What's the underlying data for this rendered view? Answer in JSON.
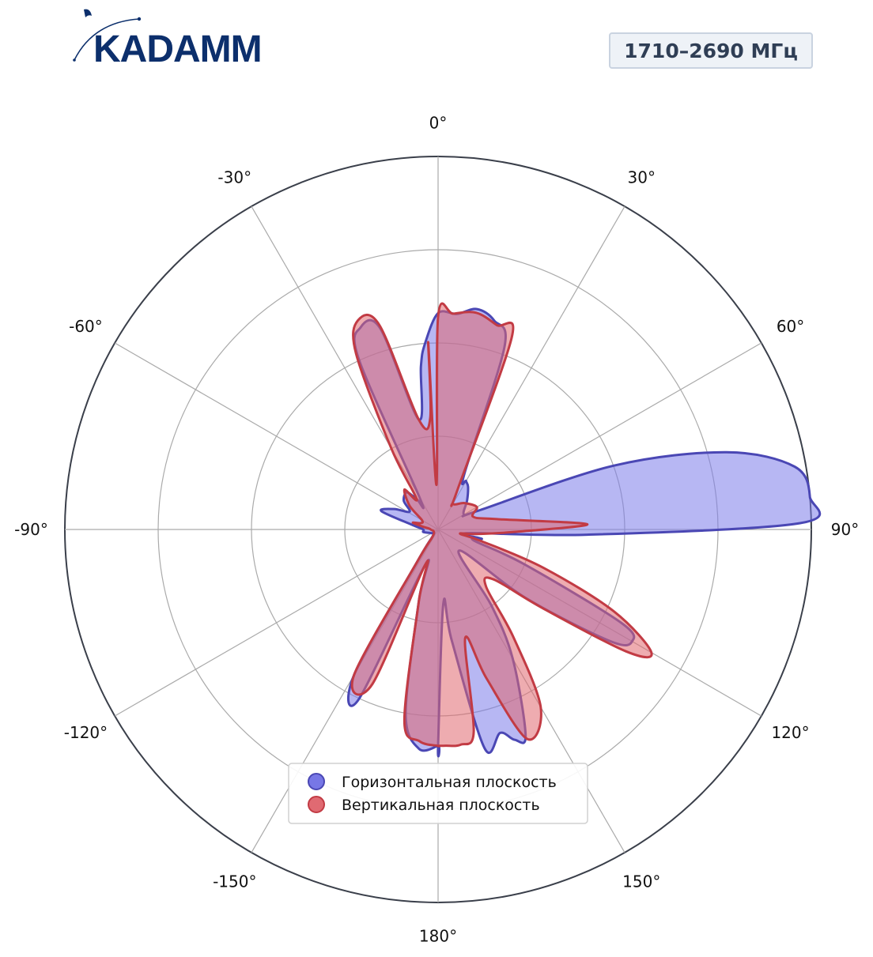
{
  "brand": {
    "logo_text": "KADAMM",
    "logo_color": "#0c2f6c"
  },
  "band_label": "1710–2690 МГц",
  "chart_data": {
    "type": "polar-area",
    "title": "",
    "theta_direction": "clockwise",
    "theta_zero": "top",
    "angle_ticks": [
      {
        "deg": 0,
        "label": "0°"
      },
      {
        "deg": 30,
        "label": "30°"
      },
      {
        "deg": 60,
        "label": "60°"
      },
      {
        "deg": 90,
        "label": "90°"
      },
      {
        "deg": 120,
        "label": "120°"
      },
      {
        "deg": 150,
        "label": "150°"
      },
      {
        "deg": 180,
        "label": "180°"
      },
      {
        "deg": -150,
        "label": "-150°"
      },
      {
        "deg": -120,
        "label": "-120°"
      },
      {
        "deg": -90,
        "label": "-90°"
      },
      {
        "deg": -60,
        "label": "-60°"
      },
      {
        "deg": -30,
        "label": "-30°"
      }
    ],
    "r_range": [
      0,
      1
    ],
    "r_gridlines": [
      0.25,
      0.5,
      0.75,
      1.0
    ],
    "r_tick_labels_visible": false,
    "grid": true,
    "legend_position": "lower-center",
    "series": [
      {
        "name": "Горизонтальная плоскость",
        "color": "#4a47b4",
        "fill": "#7b7bea",
        "marker_color": "#7777e6",
        "points": [
          [
            -180,
            0.58
          ],
          [
            -175,
            0.59
          ],
          [
            -170,
            0.5
          ],
          [
            -165,
            0.2
          ],
          [
            -160,
            0.1
          ],
          [
            -155,
            0.5
          ],
          [
            -150,
            0.45
          ],
          [
            -147,
            0.1
          ],
          [
            -140,
            0.02
          ],
          [
            -120,
            0.02
          ],
          [
            -100,
            0.04
          ],
          [
            -90,
            0.04
          ],
          [
            -80,
            0.07
          ],
          [
            -72,
            0.16
          ],
          [
            -65,
            0.13
          ],
          [
            -58,
            0.09
          ],
          [
            -50,
            0.12
          ],
          [
            -40,
            0.13
          ],
          [
            -35,
            0.1
          ],
          [
            -30,
            0.1
          ],
          [
            -25,
            0.5
          ],
          [
            -21,
            0.58
          ],
          [
            -16,
            0.56
          ],
          [
            -10,
            0.3
          ],
          [
            -6,
            0.44
          ],
          [
            -4,
            0.5
          ],
          [
            0,
            0.58
          ],
          [
            5,
            0.58
          ],
          [
            10,
            0.6
          ],
          [
            15,
            0.58
          ],
          [
            20,
            0.52
          ],
          [
            25,
            0.17
          ],
          [
            30,
            0.15
          ],
          [
            35,
            0.14
          ],
          [
            45,
            0.11
          ],
          [
            60,
            0.08
          ],
          [
            65,
            0.12
          ],
          [
            70,
            0.5
          ],
          [
            75,
            0.8
          ],
          [
            80,
            0.97
          ],
          [
            85,
            1.0
          ],
          [
            89,
            0.97
          ],
          [
            92,
            0.4
          ],
          [
            97,
            0.08
          ],
          [
            102,
            0.12
          ],
          [
            107,
            0.1
          ],
          [
            112,
            0.25
          ],
          [
            117,
            0.55
          ],
          [
            120,
            0.6
          ],
          [
            123,
            0.55
          ],
          [
            128,
            0.3
          ],
          [
            135,
            0.08
          ],
          [
            145,
            0.25
          ],
          [
            150,
            0.4
          ],
          [
            157,
            0.6
          ],
          [
            160,
            0.6
          ],
          [
            163,
            0.57
          ],
          [
            168,
            0.6
          ],
          [
            173,
            0.3
          ],
          [
            176,
            0.2
          ],
          [
            180,
            0.58
          ]
        ]
      },
      {
        "name": "Вертикальная плоскость",
        "color": "#c23b44",
        "fill": "#e06870",
        "marker_color": "#e06a72",
        "points": [
          [
            -180,
            0.58
          ],
          [
            -175,
            0.57
          ],
          [
            -170,
            0.52
          ],
          [
            -165,
            0.2
          ],
          [
            -160,
            0.1
          ],
          [
            -157,
            0.45
          ],
          [
            -150,
            0.45
          ],
          [
            -147,
            0.1
          ],
          [
            -140,
            0.02
          ],
          [
            -90,
            0.02
          ],
          [
            -80,
            0.04
          ],
          [
            -75,
            0.07
          ],
          [
            -70,
            0.05
          ],
          [
            -60,
            0.05
          ],
          [
            -50,
            0.1
          ],
          [
            -40,
            0.14
          ],
          [
            -35,
            0.1
          ],
          [
            -30,
            0.25
          ],
          [
            -25,
            0.52
          ],
          [
            -21,
            0.6
          ],
          [
            -16,
            0.57
          ],
          [
            -10,
            0.3
          ],
          [
            -2,
            0.12
          ],
          [
            -4,
            0.3
          ],
          [
            -3,
            0.5
          ],
          [
            0,
            0.57
          ],
          [
            4,
            0.58
          ],
          [
            10,
            0.59
          ],
          [
            16,
            0.57
          ],
          [
            21,
            0.55
          ],
          [
            26,
            0.12
          ],
          [
            30,
            0.08
          ],
          [
            45,
            0.1
          ],
          [
            60,
            0.12
          ],
          [
            70,
            0.1
          ],
          [
            80,
            0.16
          ],
          [
            88,
            0.4
          ],
          [
            92,
            0.2
          ],
          [
            97,
            0.1
          ],
          [
            101,
            0.06
          ],
          [
            105,
            0.12
          ],
          [
            110,
            0.3
          ],
          [
            115,
            0.52
          ],
          [
            120,
            0.66
          ],
          [
            123,
            0.6
          ],
          [
            127,
            0.35
          ],
          [
            132,
            0.2
          ],
          [
            140,
            0.2
          ],
          [
            145,
            0.35
          ],
          [
            150,
            0.55
          ],
          [
            157,
            0.61
          ],
          [
            162,
            0.42
          ],
          [
            166,
            0.3
          ],
          [
            170,
            0.55
          ],
          [
            174,
            0.58
          ],
          [
            178,
            0.58
          ],
          [
            180,
            0.58
          ]
        ]
      }
    ]
  }
}
